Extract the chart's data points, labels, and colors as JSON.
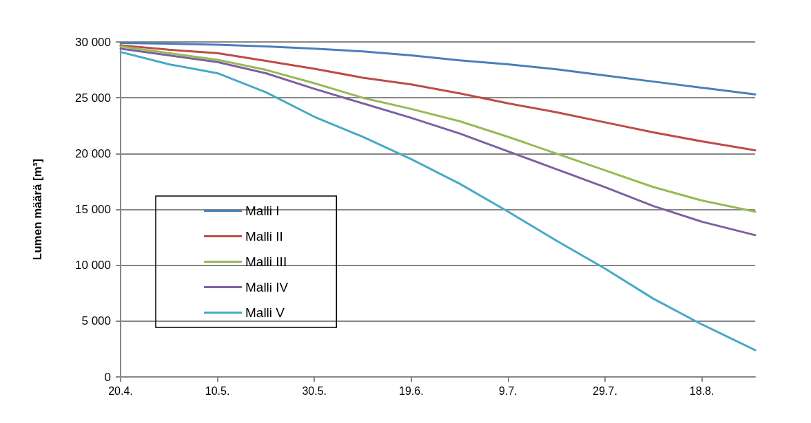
{
  "chart_data": {
    "type": "line",
    "ylabel": "Lumen määrä [m³]",
    "x": [
      "--04-20",
      "--04-30",
      "--05-10",
      "--05-20",
      "--05-30",
      "--06-09",
      "--06-19",
      "--06-29",
      "--07-09",
      "--07-19",
      "--07-29",
      "--08-08",
      "--08-18",
      "--08-29"
    ],
    "series": [
      {
        "name": "Malli I",
        "color": "#4a7ebb",
        "values": [
          29900,
          29850,
          29750,
          29600,
          29400,
          29150,
          28800,
          28350,
          28000,
          27550,
          27000,
          26450,
          25900,
          25300
        ]
      },
      {
        "name": "Malli II",
        "color": "#be4b48",
        "values": [
          29700,
          29300,
          29000,
          28300,
          27600,
          26800,
          26200,
          25400,
          24500,
          23700,
          22800,
          21900,
          21100,
          20300
        ]
      },
      {
        "name": "Malli III",
        "color": "#98b954",
        "values": [
          29600,
          29000,
          28400,
          27500,
          26300,
          25000,
          24000,
          22900,
          21500,
          20000,
          18500,
          17000,
          15800,
          14800
        ]
      },
      {
        "name": "Malli IV",
        "color": "#7d60a0",
        "values": [
          29400,
          28800,
          28200,
          27200,
          25800,
          24500,
          23200,
          21800,
          20200,
          18600,
          17000,
          15300,
          13900,
          12700
        ]
      },
      {
        "name": "Malli V",
        "color": "#46aac5",
        "values": [
          29100,
          28000,
          27200,
          25500,
          23300,
          21500,
          19500,
          17300,
          14800,
          12200,
          9700,
          7000,
          4700,
          2400
        ]
      }
    ],
    "xlim": [
      "--04-20",
      "--08-29"
    ],
    "xticks": [
      {
        "value": "--04-20",
        "label": "20.4."
      },
      {
        "value": "--05-10",
        "label": "10.5."
      },
      {
        "value": "--05-30",
        "label": "30.5."
      },
      {
        "value": "--06-19",
        "label": "19.6."
      },
      {
        "value": "--07-09",
        "label": "9.7."
      },
      {
        "value": "--07-29",
        "label": "29.7."
      },
      {
        "value": "--08-18",
        "label": "18.8."
      }
    ],
    "ylim": [
      0,
      30000
    ],
    "yticks": [
      0,
      {
        "value": 5000,
        "label": "5 000"
      },
      {
        "value": 10000,
        "label": "10 000"
      },
      {
        "value": 15000,
        "label": "15 000"
      },
      {
        "value": 20000,
        "label": "20 000"
      },
      {
        "value": 25000,
        "label": "25 000"
      },
      {
        "value": 30000,
        "label": "30 000"
      }
    ],
    "grid": "y",
    "legend": "bottom left",
    "marker": "none",
    "line_style": "solid"
  }
}
